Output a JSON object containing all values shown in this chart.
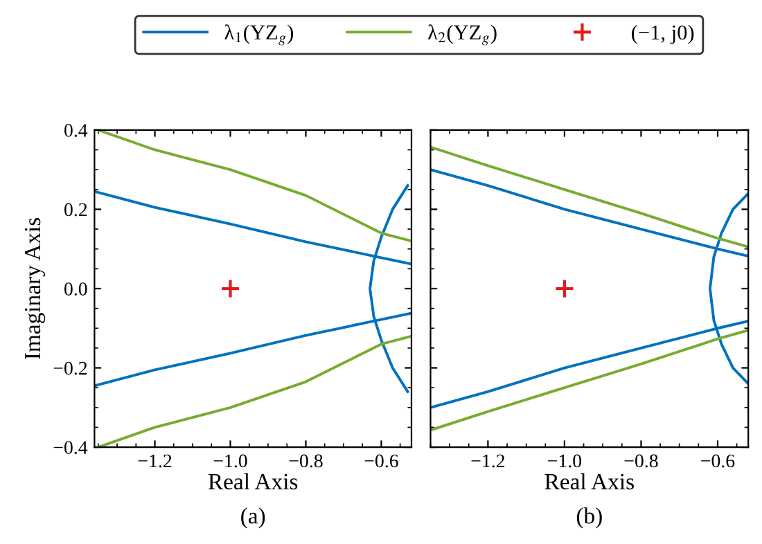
{
  "chart_data": [
    {
      "type": "line",
      "xlabel": "Real Axis",
      "ylabel": "Imaginary Axis",
      "annotations": [
        "(a)"
      ],
      "legend": "top",
      "grid": false,
      "xlim": [
        -1.36,
        -0.52
      ],
      "xticks": [
        -1.2,
        {
          "value": -1.0,
          "label": "−1.0"
        },
        -0.8,
        -0.6
      ],
      "ylim": [
        -0.4,
        0.4
      ],
      "yticks": [
        -0.4,
        -0.2,
        {
          "value": 0,
          "label": "0.0"
        },
        0.2,
        0.4
      ],
      "series": [
        {
          "name": "λ$_{1}$(YZ$_{g}$)",
          "color": "#0072bd",
          "x": [
            -1.36,
            -1.2,
            -1.0,
            -0.8,
            -0.6,
            -0.52
          ],
          "values": [
            0.245,
            0.205,
            0.163,
            0.118,
            0.078,
            0.062
          ]
        },
        {
          "color": "#0072bd",
          "x": [
            -1.36,
            -1.2,
            -1.0,
            -0.8,
            -0.6,
            -0.52
          ],
          "values": [
            -0.245,
            -0.205,
            -0.163,
            -0.118,
            -0.078,
            -0.062
          ]
        },
        {
          "color": "#0072bd",
          "x": [
            -0.53,
            -0.57,
            -0.6,
            -0.62,
            -0.63,
            -0.62,
            -0.6,
            -0.57,
            -0.53
          ],
          "values": [
            -0.26,
            -0.2,
            -0.13,
            -0.07,
            0.0,
            0.07,
            0.13,
            0.2,
            0.26
          ]
        },
        {
          "name": "λ$_{2}$(YZ$_{g}$)",
          "color": "#77ac30",
          "x": [
            -1.35,
            -1.2,
            -1.0,
            -0.8,
            -0.6,
            -0.52
          ],
          "values": [
            0.4,
            0.35,
            0.3,
            0.235,
            0.14,
            0.12
          ]
        },
        {
          "color": "#77ac30",
          "x": [
            -1.35,
            -1.2,
            -1.0,
            -0.8,
            -0.6,
            -0.52
          ],
          "values": [
            -0.4,
            -0.35,
            -0.3,
            -0.235,
            -0.14,
            -0.12
          ]
        },
        {
          "name": "(−1, j0)",
          "type": "scatter",
          "marker": "cross",
          "color": "#e41a1c",
          "x": [
            -1.0
          ],
          "values": [
            0.0
          ]
        }
      ]
    },
    {
      "type": "line",
      "xlabel": "Real Axis",
      "annotations": [
        "(b)"
      ],
      "tick_labels": "x",
      "grid": false,
      "xlim": [
        -1.35,
        -0.52
      ],
      "xticks": [
        -1.2,
        {
          "value": -1.0,
          "label": "−1.0"
        },
        -0.8,
        -0.6
      ],
      "ylim": [
        -0.4,
        0.4
      ],
      "yticks": [
        -0.4,
        -0.2,
        0,
        0.2,
        0.4
      ],
      "series": [
        {
          "color": "#0072bd",
          "x": [
            -1.35,
            -1.2,
            -1.0,
            -0.8,
            -0.6,
            -0.52
          ],
          "values": [
            0.3,
            0.26,
            0.2,
            0.15,
            0.1,
            0.082
          ]
        },
        {
          "color": "#0072bd",
          "x": [
            -1.35,
            -1.2,
            -1.0,
            -0.8,
            -0.6,
            -0.52
          ],
          "values": [
            -0.3,
            -0.26,
            -0.2,
            -0.15,
            -0.1,
            -0.082
          ]
        },
        {
          "color": "#0072bd",
          "x": [
            -0.52,
            -0.56,
            -0.59,
            -0.61,
            -0.62,
            -0.61,
            -0.59,
            -0.56,
            -0.52
          ],
          "values": [
            -0.24,
            -0.2,
            -0.14,
            -0.08,
            0.0,
            0.08,
            0.14,
            0.2,
            0.24
          ]
        },
        {
          "color": "#77ac30",
          "x": [
            -1.35,
            -1.2,
            -1.0,
            -0.8,
            -0.6,
            -0.52
          ],
          "values": [
            0.357,
            0.31,
            0.25,
            0.19,
            0.127,
            0.105
          ]
        },
        {
          "color": "#77ac30",
          "x": [
            -1.35,
            -1.2,
            -1.0,
            -0.8,
            -0.6,
            -0.52
          ],
          "values": [
            -0.357,
            -0.31,
            -0.25,
            -0.19,
            -0.127,
            -0.105
          ]
        },
        {
          "type": "scatter",
          "marker": "cross",
          "color": "#e41a1c",
          "x": [
            -1.0
          ],
          "values": [
            0.0
          ]
        }
      ]
    }
  ]
}
